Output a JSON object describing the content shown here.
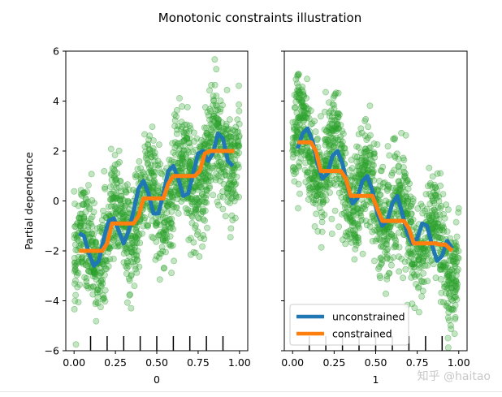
{
  "chart_data": {
    "type": "scatter",
    "title": "Monotonic constraints illustration",
    "ylabel": "Partial dependence",
    "ylim": [
      -6,
      6
    ],
    "yticks": [
      -6,
      -4,
      -2,
      0,
      2,
      4,
      6
    ],
    "ytick_labels": [
      "−6",
      "−4",
      "−2",
      "0",
      "2",
      "4",
      "6"
    ],
    "xticks": [
      0.0,
      0.25,
      0.5,
      0.75,
      1.0
    ],
    "xtick_labels": [
      "0.00",
      "0.25",
      "0.50",
      "0.75",
      "1.00"
    ],
    "panels": [
      {
        "xlabel": "0",
        "xlim": [
          -0.05,
          1.05
        ],
        "trend": "increasing",
        "scatter_description": "noisy sinusoid around line y = 5x - 2.5",
        "deciles": [
          0.1,
          0.2,
          0.3,
          0.4,
          0.5,
          0.6,
          0.7,
          0.8,
          0.9
        ],
        "series": [
          {
            "name": "unconstrained",
            "color": "#1f77b4",
            "x": [
              0.03,
              0.06,
              0.09,
              0.12,
              0.15,
              0.18,
              0.21,
              0.24,
              0.27,
              0.3,
              0.33,
              0.36,
              0.39,
              0.42,
              0.45,
              0.48,
              0.51,
              0.54,
              0.57,
              0.6,
              0.63,
              0.66,
              0.69,
              0.72,
              0.75,
              0.78,
              0.81,
              0.84,
              0.87,
              0.9,
              0.93,
              0.96
            ],
            "y": [
              -1.3,
              -1.4,
              -2.1,
              -2.6,
              -2.4,
              -1.5,
              -0.8,
              -0.7,
              -1.2,
              -1.7,
              -1.2,
              -0.4,
              0.5,
              0.8,
              0.3,
              -0.5,
              -0.5,
              0.3,
              1.2,
              1.4,
              0.9,
              0.2,
              0.3,
              1.1,
              1.9,
              2.0,
              1.6,
              1.9,
              2.7,
              2.5,
              1.6,
              1.4
            ]
          },
          {
            "name": "constrained",
            "color": "#ff7f0e",
            "x": [
              0.03,
              0.17,
              0.2,
              0.23,
              0.36,
              0.39,
              0.42,
              0.54,
              0.57,
              0.6,
              0.73,
              0.76,
              0.79,
              0.82,
              0.97
            ],
            "y": [
              -2.0,
              -2.0,
              -1.7,
              -0.9,
              -0.9,
              -0.6,
              0.1,
              0.1,
              0.7,
              1.0,
              1.0,
              1.2,
              1.9,
              2.0,
              2.0
            ]
          }
        ]
      },
      {
        "xlabel": "1",
        "xlim": [
          -0.05,
          1.05
        ],
        "trend": "decreasing",
        "scatter_description": "noisy sinusoid around line y = -5x + 2.5",
        "deciles": [
          0.1,
          0.2,
          0.3,
          0.4,
          0.5,
          0.6,
          0.7,
          0.8,
          0.9
        ],
        "series": [
          {
            "name": "unconstrained",
            "color": "#1f77b4",
            "x": [
              0.03,
              0.06,
              0.09,
              0.12,
              0.15,
              0.18,
              0.21,
              0.24,
              0.27,
              0.3,
              0.33,
              0.36,
              0.39,
              0.42,
              0.45,
              0.48,
              0.51,
              0.54,
              0.57,
              0.6,
              0.63,
              0.66,
              0.69,
              0.72,
              0.75,
              0.78,
              0.81,
              0.84,
              0.87,
              0.9,
              0.93,
              0.96
            ],
            "y": [
              2.1,
              2.7,
              2.9,
              2.4,
              1.5,
              0.9,
              1.1,
              1.8,
              2.0,
              1.5,
              0.6,
              -0.1,
              0.1,
              0.8,
              1.0,
              0.4,
              -0.5,
              -1.0,
              -0.8,
              -0.1,
              0.2,
              -0.5,
              -1.3,
              -1.7,
              -1.5,
              -0.9,
              -1.0,
              -1.8,
              -2.4,
              -2.2,
              -1.6,
              -1.9
            ]
          },
          {
            "name": "constrained",
            "color": "#ff7f0e",
            "x": [
              0.03,
              0.11,
              0.14,
              0.17,
              0.29,
              0.32,
              0.35,
              0.48,
              0.51,
              0.54,
              0.67,
              0.7,
              0.73,
              0.86,
              0.89,
              0.92,
              0.96
            ],
            "y": [
              2.35,
              2.35,
              2.0,
              1.2,
              1.2,
              0.9,
              0.2,
              0.2,
              -0.3,
              -0.8,
              -0.8,
              -1.1,
              -1.7,
              -1.7,
              -1.75,
              -1.75,
              -2.0
            ]
          }
        ]
      }
    ],
    "legend": {
      "placement": "lower-left",
      "panel": 1,
      "entries": [
        {
          "label": "unconstrained",
          "color": "#1f77b4"
        },
        {
          "label": "constrained",
          "color": "#ff7f0e"
        }
      ]
    },
    "scatter_color": "#2ca02c"
  },
  "watermark": "知乎 @haitao"
}
